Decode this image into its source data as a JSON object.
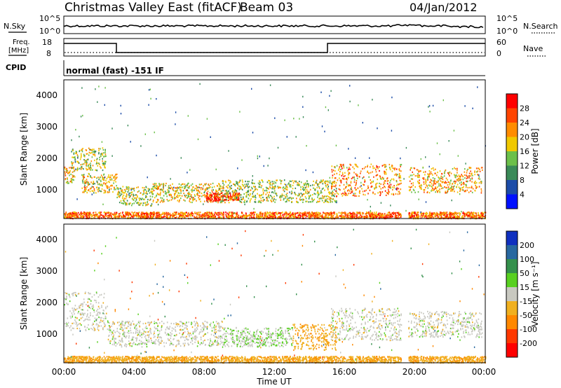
{
  "header": {
    "station": "Christmas Valley East (fitACF)",
    "beam": "Beam 03",
    "date": "04/Jan/2012"
  },
  "noise_panel": {
    "left_label": "N.Sky",
    "right_label": "N.Search",
    "left_ticks": [
      "10^5",
      "10^0"
    ],
    "right_ticks": [
      "10^5",
      "10^0"
    ]
  },
  "freq_panel": {
    "left_label_1": "Freq.",
    "left_label_2": "[MHz]",
    "right_label": "Nave",
    "left_ticks": [
      "18",
      "8"
    ],
    "right_ticks": [
      "60",
      "0"
    ]
  },
  "cpid": {
    "label": "CPID",
    "value": "normal (fast) -151 IF"
  },
  "x_axis": {
    "label": "Time UT",
    "ticks": [
      "00:00",
      "04:00",
      "08:00",
      "12:00",
      "16:00",
      "20:00",
      "00:00"
    ]
  },
  "power_colorbar": {
    "label": "Power [dB]",
    "ticks": [
      "28",
      "24",
      "20",
      "16",
      "12",
      "8",
      "4"
    ],
    "colors": [
      "#ff0000",
      "#ff4400",
      "#ff8c00",
      "#f0c800",
      "#6cc04a",
      "#3a8a58",
      "#1c4ca8",
      "#0010ff"
    ]
  },
  "velocity_colorbar": {
    "label": "Velocity [m s⁻¹]",
    "ticks": [
      "200",
      "100",
      "50",
      "15",
      "-15",
      "-50",
      "-100",
      "-200"
    ],
    "colors": [
      "#1030c0",
      "#2868a0",
      "#34904c",
      "#58d020",
      "#c8c8c0",
      "#f0b020",
      "#ff8800",
      "#ff3800",
      "#ff0000"
    ]
  },
  "chart_data": [
    {
      "type": "heatmap",
      "title": "Power",
      "ylabel": "Slant Range [km]",
      "xlabel": "Time UT",
      "y_ticks": [
        "4000",
        "3000",
        "2000",
        "1000"
      ],
      "xlim_hours": [
        0,
        24
      ],
      "ylim_km": [
        180,
        4500
      ],
      "scatter_bands": [
        {
          "t": [
            0.0,
            0.6
          ],
          "r": [
            1300,
            1800
          ],
          "value_db": 20
        },
        {
          "t": [
            0.4,
            2.4
          ],
          "r": [
            1700,
            2400
          ],
          "value_db": 16
        },
        {
          "t": [
            1.0,
            3.0
          ],
          "r": [
            1000,
            1600
          ],
          "value_db": 18
        },
        {
          "t": [
            3.0,
            5.0
          ],
          "r": [
            600,
            1200
          ],
          "value_db": 16
        },
        {
          "t": [
            5.0,
            9.0
          ],
          "r": [
            700,
            1300
          ],
          "value_db": 18
        },
        {
          "t": [
            8.0,
            10.0
          ],
          "r": [
            750,
            1000
          ],
          "value_db": 28
        },
        {
          "t": [
            9.0,
            15.5
          ],
          "r": [
            700,
            1400
          ],
          "value_db": 16
        },
        {
          "t": [
            15.2,
            19.2
          ],
          "r": [
            900,
            1900
          ],
          "value_db": 22
        },
        {
          "t": [
            19.6,
            23.8
          ],
          "r": [
            1000,
            1800
          ],
          "value_db": 20
        },
        {
          "t": [
            0.0,
            24.0
          ],
          "r": [
            200,
            400
          ],
          "value_db": 24
        }
      ]
    },
    {
      "type": "heatmap",
      "title": "Velocity",
      "ylabel": "Slant Range [km]",
      "xlabel": "Time UT",
      "y_ticks": [
        "4000",
        "3000",
        "2000",
        "1000"
      ],
      "xlim_hours": [
        0,
        24
      ],
      "ylim_km": [
        180,
        4500
      ],
      "scatter_bands": [
        {
          "t": [
            0.0,
            2.5
          ],
          "r": [
            1200,
            2400
          ],
          "value_ms": 0
        },
        {
          "t": [
            2.5,
            9.0
          ],
          "r": [
            700,
            1500
          ],
          "value_ms": 0
        },
        {
          "t": [
            9.0,
            13.0
          ],
          "r": [
            700,
            1300
          ],
          "value_ms": 10
        },
        {
          "t": [
            13.0,
            15.5
          ],
          "r": [
            600,
            1400
          ],
          "value_ms": -40
        },
        {
          "t": [
            15.2,
            19.2
          ],
          "r": [
            900,
            1900
          ],
          "value_ms": 0
        },
        {
          "t": [
            19.6,
            23.8
          ],
          "r": [
            1000,
            1800
          ],
          "value_ms": 0
        },
        {
          "t": [
            0.0,
            24.0
          ],
          "r": [
            200,
            400
          ],
          "value_ms": -40
        }
      ]
    }
  ]
}
